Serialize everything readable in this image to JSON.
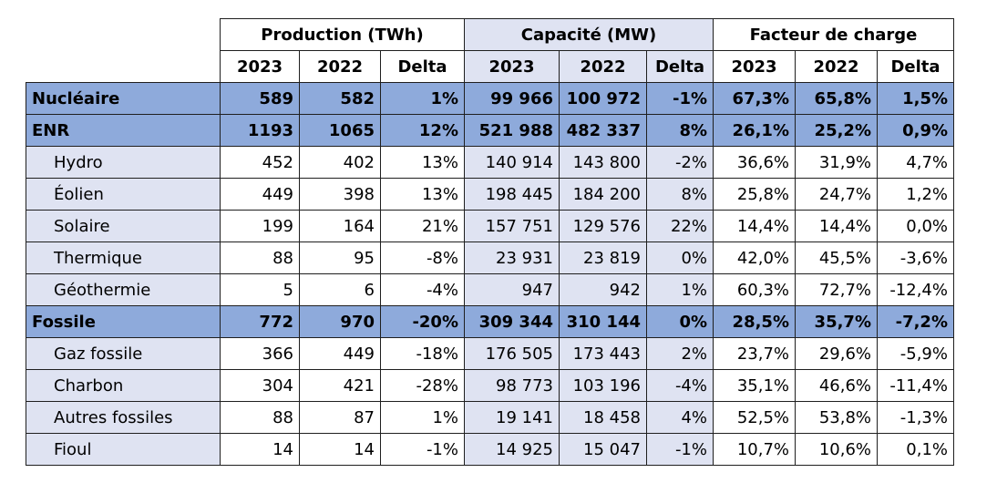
{
  "header": {
    "groups": [
      "Production (TWh)",
      "Capacité (MW)",
      "Facteur de charge"
    ],
    "subheaders": [
      "2023",
      "2022",
      "Delta",
      "2023",
      "2022",
      "Delta",
      "2023",
      "2022",
      "Delta"
    ]
  },
  "rows": [
    {
      "label": "Nucléaire",
      "group": true,
      "values": [
        "589",
        "582",
        "1%",
        "99 966",
        "100 972",
        "-1%",
        "67,3%",
        "65,8%",
        "1,5%"
      ]
    },
    {
      "label": "ENR",
      "group": true,
      "values": [
        "1193",
        "1065",
        "12%",
        "521 988",
        "482 337",
        "8%",
        "26,1%",
        "25,2%",
        "0,9%"
      ]
    },
    {
      "label": "Hydro",
      "group": false,
      "values": [
        "452",
        "402",
        "13%",
        "140 914",
        "143 800",
        "-2%",
        "36,6%",
        "31,9%",
        "4,7%"
      ]
    },
    {
      "label": "Éolien",
      "group": false,
      "values": [
        "449",
        "398",
        "13%",
        "198 445",
        "184 200",
        "8%",
        "25,8%",
        "24,7%",
        "1,2%"
      ]
    },
    {
      "label": "Solaire",
      "group": false,
      "values": [
        "199",
        "164",
        "21%",
        "157 751",
        "129 576",
        "22%",
        "14,4%",
        "14,4%",
        "0,0%"
      ]
    },
    {
      "label": "Thermique",
      "group": false,
      "values": [
        "88",
        "95",
        "-8%",
        "23 931",
        "23 819",
        "0%",
        "42,0%",
        "45,5%",
        "-3,6%"
      ]
    },
    {
      "label": "Géothermie",
      "group": false,
      "values": [
        "5",
        "6",
        "-4%",
        "947",
        "942",
        "1%",
        "60,3%",
        "72,7%",
        "-12,4%"
      ]
    },
    {
      "label": "Fossile",
      "group": true,
      "values": [
        "772",
        "970",
        "-20%",
        "309 344",
        "310 144",
        "0%",
        "28,5%",
        "35,7%",
        "-7,2%"
      ]
    },
    {
      "label": "Gaz fossile",
      "group": false,
      "values": [
        "366",
        "449",
        "-18%",
        "176 505",
        "173 443",
        "2%",
        "23,7%",
        "29,6%",
        "-5,9%"
      ]
    },
    {
      "label": "Charbon",
      "group": false,
      "values": [
        "304",
        "421",
        "-28%",
        "98 773",
        "103 196",
        "-4%",
        "35,1%",
        "46,6%",
        "-11,4%"
      ]
    },
    {
      "label": "Autres fossiles",
      "group": false,
      "values": [
        "88",
        "87",
        "1%",
        "19 141",
        "18 458",
        "4%",
        "52,5%",
        "53,8%",
        "-1,3%"
      ]
    },
    {
      "label": "Fioul",
      "group": false,
      "values": [
        "14",
        "14",
        "-1%",
        "14 925",
        "15 047",
        "-1%",
        "10,7%",
        "10,6%",
        "0,1%"
      ]
    }
  ],
  "colors": {
    "group_row": "#8eaadb",
    "capacity_band": "#dfe3f2",
    "sub_label": "#dfe3f2"
  }
}
